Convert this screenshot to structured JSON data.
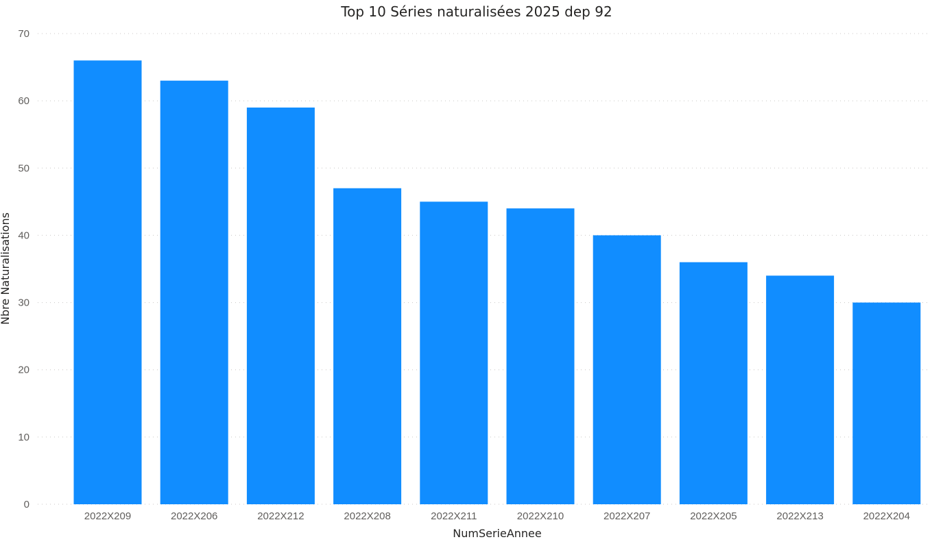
{
  "chart_data": {
    "type": "bar",
    "title": "Top 10 Séries naturalisées 2025 dep 92",
    "xlabel": "NumSerieAnnee",
    "ylabel": "Nbre Naturalisations",
    "categories": [
      "2022X209",
      "2022X206",
      "2022X212",
      "2022X208",
      "2022X211",
      "2022X210",
      "2022X207",
      "2022X205",
      "2022X213",
      "2022X204"
    ],
    "values": [
      66,
      63,
      59,
      47,
      45,
      44,
      40,
      36,
      34,
      30
    ],
    "ylim": [
      0,
      70
    ],
    "yticks": [
      0,
      10,
      20,
      30,
      40,
      50,
      60,
      70
    ],
    "grid": true,
    "colors": {
      "bar": "#118dff",
      "gridline": "#c8c6c4"
    }
  }
}
